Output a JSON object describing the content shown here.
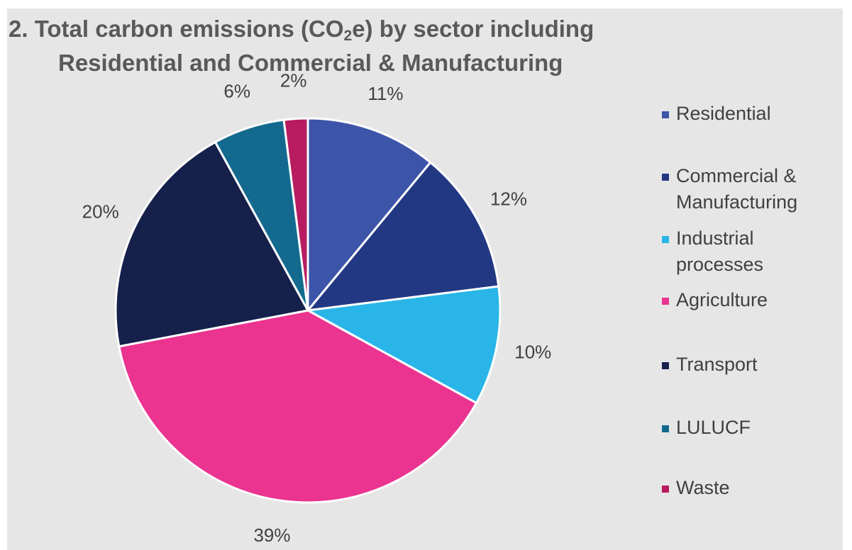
{
  "chart_data": {
    "type": "pie",
    "title_main": "2. Total carbon emissions (CO",
    "title_sub": "2",
    "title_rest": "e) by sector including",
    "title_line2": "Residential and Commercial & Manufacturing",
    "slices": [
      {
        "label": "Residential",
        "value": 11,
        "display": "11%",
        "color": "#3d55a9"
      },
      {
        "label": "Commercial & Manufacturing",
        "value": 12,
        "display": "12%",
        "color": "#233883"
      },
      {
        "label": "Industrial processes",
        "value": 10,
        "display": "10%",
        "color": "#29b5e8"
      },
      {
        "label": "Agriculture",
        "value": 39,
        "display": "39%",
        "color": "#eb3390"
      },
      {
        "label": "Transport",
        "value": 20,
        "display": "20%",
        "color": "#15204b"
      },
      {
        "label": "LULUCF",
        "value": 6,
        "display": "6%",
        "color": "#136a8e"
      },
      {
        "label": "Waste",
        "value": 2,
        "display": "2%",
        "color": "#b81c5f"
      }
    ],
    "legend": {
      "position": "right",
      "items": [
        {
          "lines": [
            "Residential"
          ],
          "color": "#3d55a9"
        },
        {
          "lines": [
            "Commercial &",
            "Manufacturing"
          ],
          "color": "#233883"
        },
        {
          "lines": [
            "Industrial",
            "processes"
          ],
          "color": "#29b5e8"
        },
        {
          "lines": [
            "Agriculture"
          ],
          "color": "#eb3390"
        },
        {
          "lines": [
            "Transport"
          ],
          "color": "#15204b"
        },
        {
          "lines": [
            "LULUCF"
          ],
          "color": "#136a8e"
        },
        {
          "lines": [
            "Waste"
          ],
          "color": "#b81c5f"
        }
      ]
    },
    "background_color": "#e6e6e6",
    "text_color": "#595959"
  }
}
